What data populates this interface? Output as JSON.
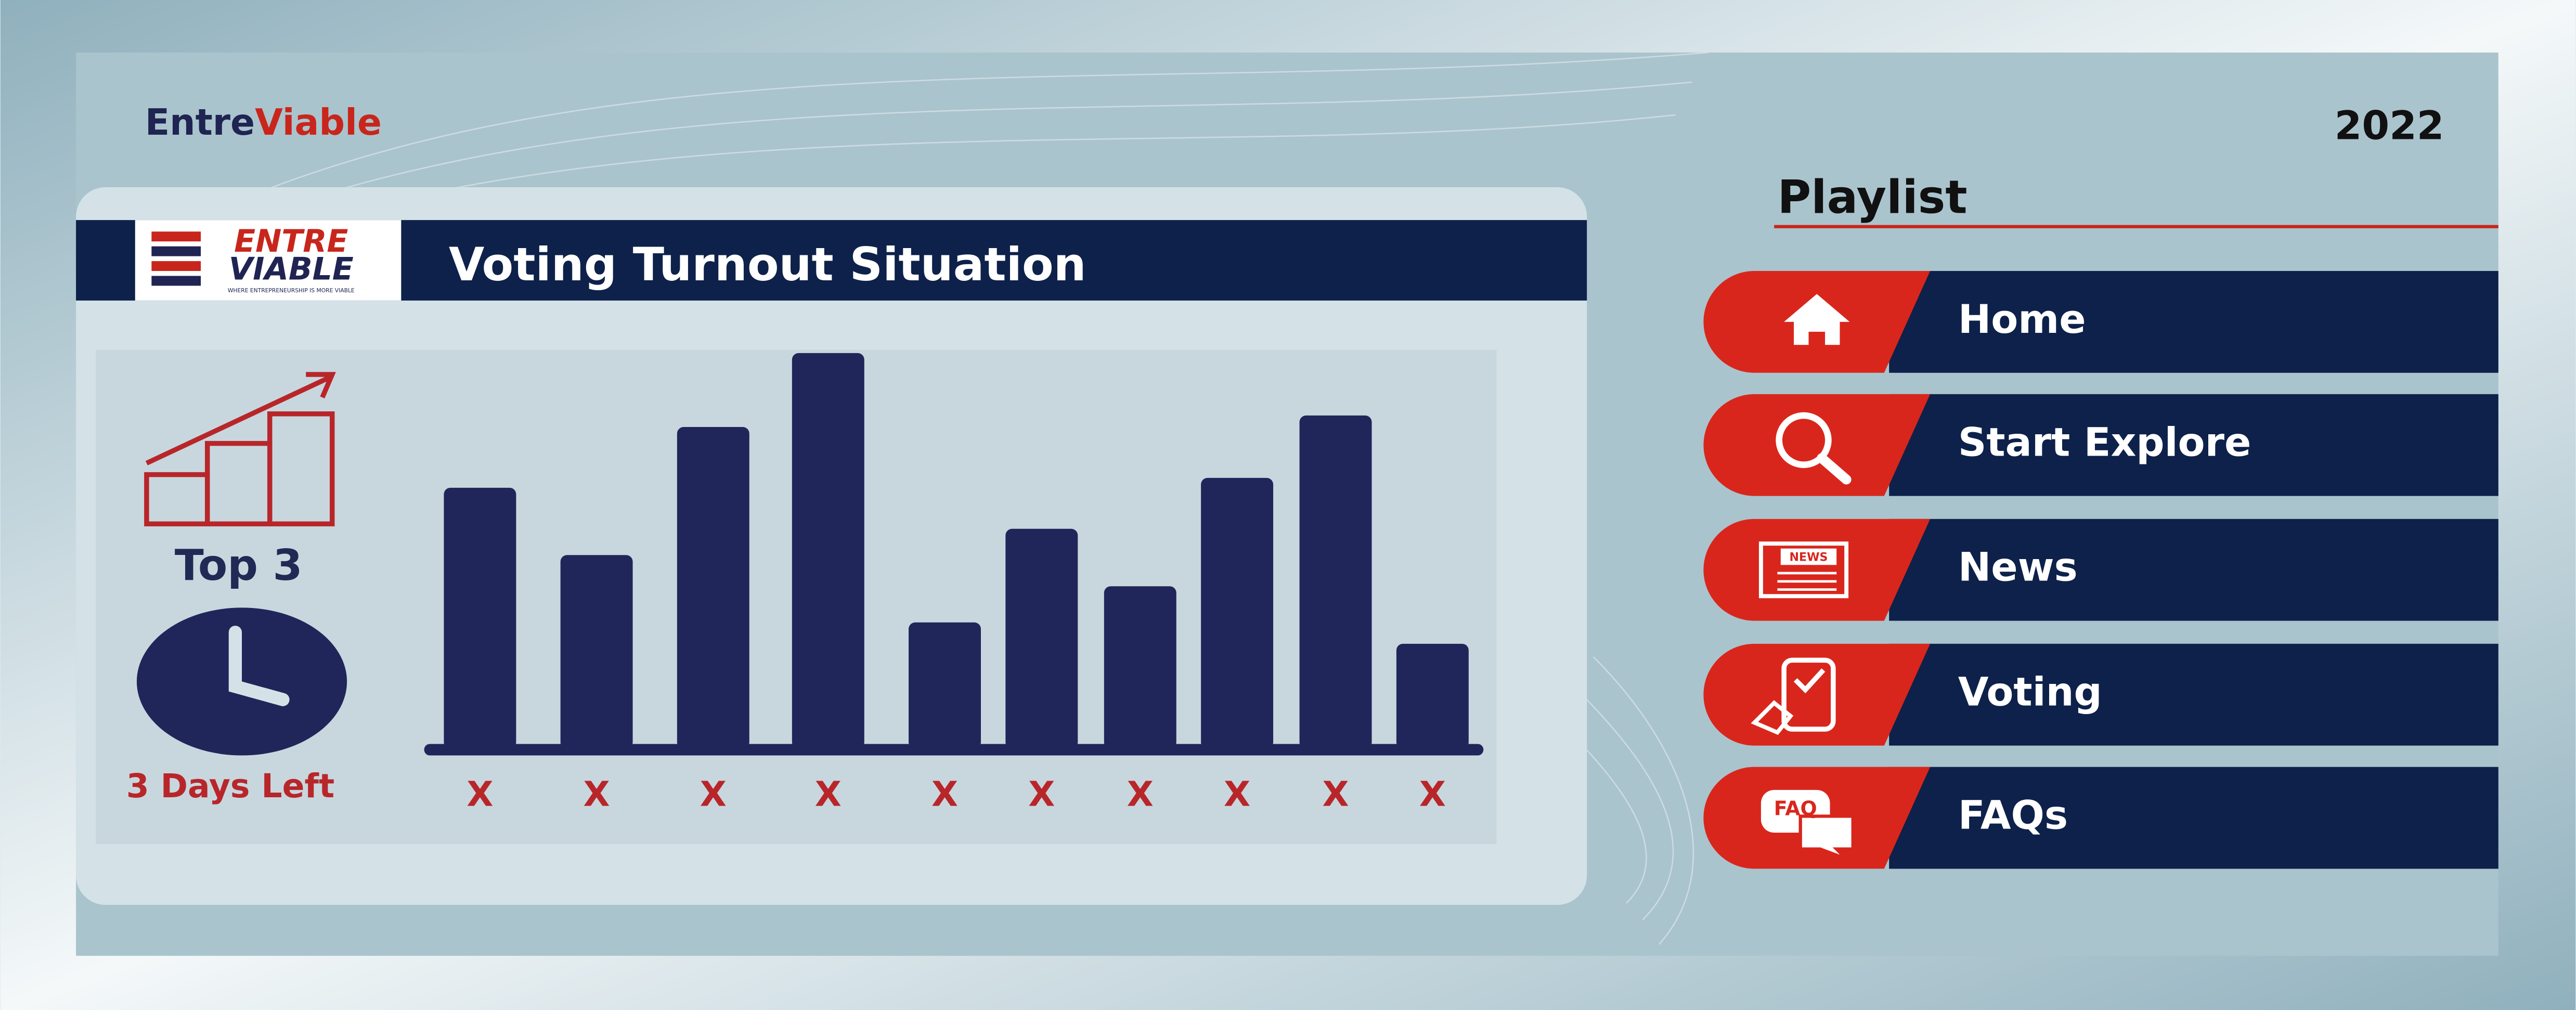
{
  "header": {
    "brand_a": "Entre",
    "brand_b": "Viable",
    "year": "2022"
  },
  "card": {
    "title": "Voting Turnout Situation",
    "logo_top": "ENTRE",
    "logo_bottom": "VIABLE",
    "logo_tagline": "WHERE ENTREPRENEURSHIP IS MORE VIABLE",
    "stat_label": "Top 3",
    "countdown": "3 Days Left"
  },
  "chart_data": {
    "type": "bar",
    "categories": [
      "X",
      "X",
      "X",
      "X",
      "X",
      "X",
      "X",
      "X",
      "X",
      "X"
    ],
    "values": [
      159,
      118,
      196,
      241,
      77,
      134,
      99,
      165,
      203,
      64
    ],
    "color": "#20265a",
    "label_color": "#b8262a"
  },
  "playlist": {
    "title": "Playlist",
    "items": [
      {
        "label": "Home"
      },
      {
        "label": "Start Explore"
      },
      {
        "label": "News",
        "icon_text": "NEWS"
      },
      {
        "label": "Voting"
      },
      {
        "label": "FAQs",
        "icon_text": "FAQ"
      }
    ]
  }
}
